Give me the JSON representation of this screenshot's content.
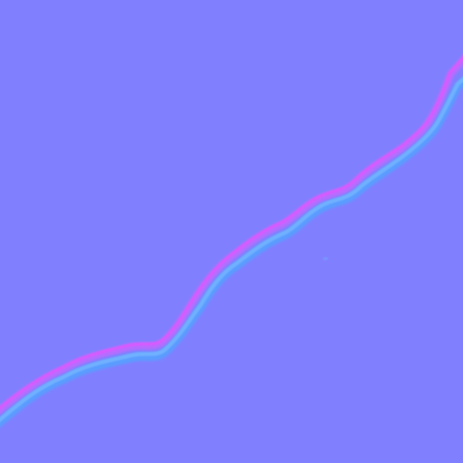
{
  "texture": {
    "kind": "normal map",
    "base_color": "#8080ff",
    "crease_colors": {
      "upper_edge": "#d55cff",
      "upper_highlight": "#b86cff",
      "lower_edge": "#6fb0ff",
      "lower_shadow": "#5a9cff"
    }
  }
}
